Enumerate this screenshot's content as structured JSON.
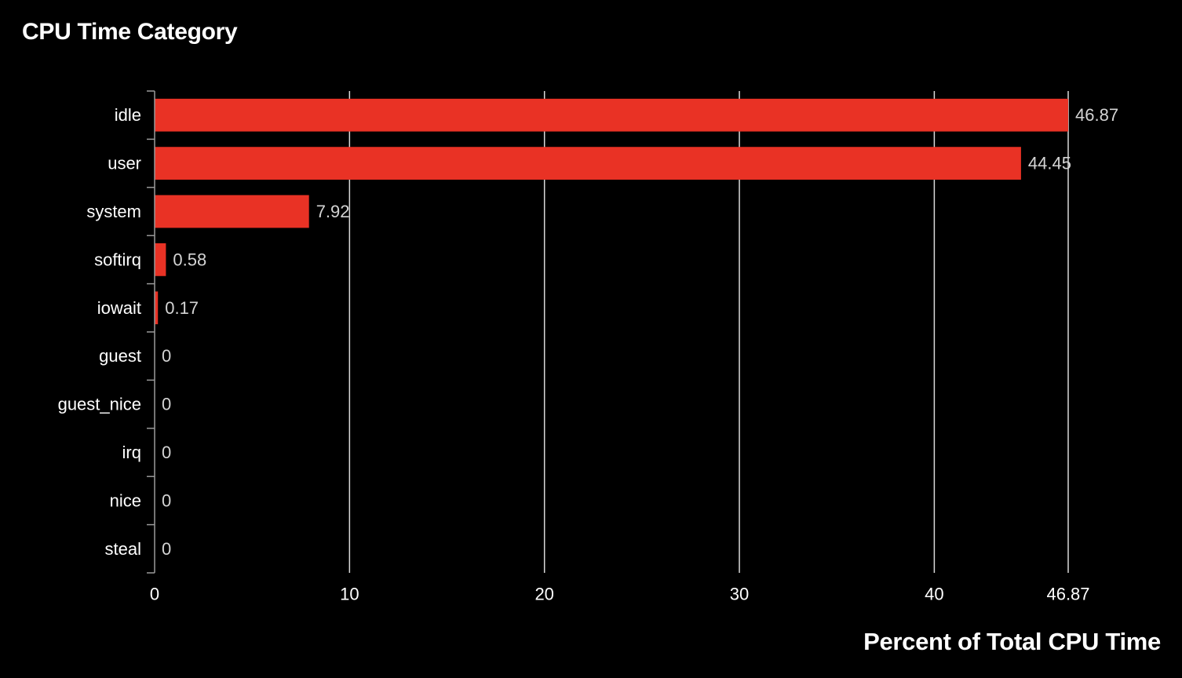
{
  "chart_data": {
    "type": "bar",
    "orientation": "horizontal",
    "title": "CPU Time Category",
    "xlabel": "Percent of Total CPU Time",
    "ylabel": "",
    "categories": [
      "idle",
      "user",
      "system",
      "softirq",
      "iowait",
      "guest",
      "guest_nice",
      "irq",
      "nice",
      "steal"
    ],
    "values": [
      46.87,
      44.45,
      7.92,
      0.58,
      0.17,
      0,
      0,
      0,
      0,
      0
    ],
    "value_labels": [
      "46.87",
      "44.45",
      "7.92",
      "0.58",
      "0.17",
      "0",
      "0",
      "0",
      "0",
      "0"
    ],
    "xlim": [
      0,
      46.87
    ],
    "x_ticks": [
      0,
      10,
      20,
      30,
      40,
      46.87
    ],
    "x_tick_labels": [
      "0",
      "10",
      "20",
      "30",
      "40",
      "46.87"
    ],
    "grid": "vertical",
    "legend": "none"
  },
  "colors": {
    "background": "#000000",
    "bar": "#e93225",
    "grid": "#d9d9d9",
    "axis": "#9a9a9a",
    "text": "#ffffff",
    "value_label": "#d4d4d4"
  }
}
